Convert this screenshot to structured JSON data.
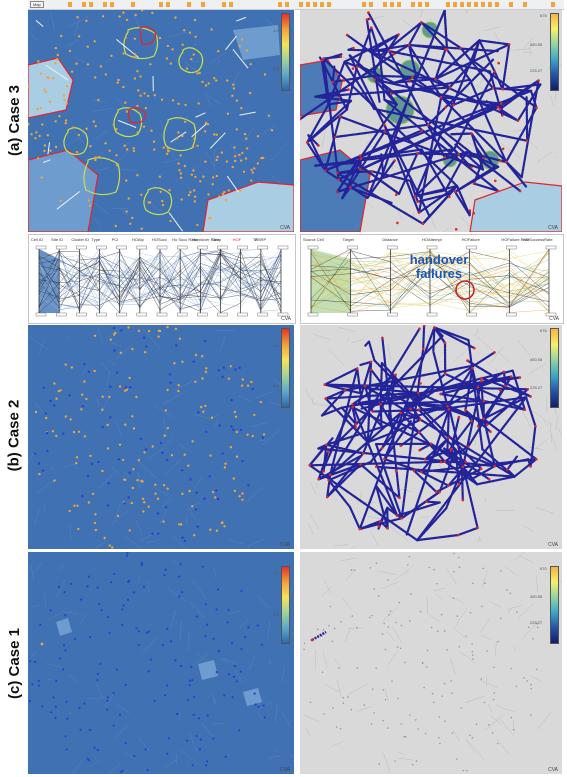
{
  "case_labels": {
    "case3": "(a) Case 3",
    "case2": "(b) Case 2",
    "case1": "(c) Case 1"
  },
  "topbar": {
    "menu_label": "Map"
  },
  "left_scale_labels": [
    "1.0",
    "0.5"
  ],
  "right_scale_labels": [
    "676",
    "450.55",
    "225.27"
  ],
  "right_scale_labels_case1": [
    "670",
    "450.55",
    "225.27"
  ],
  "corner_label": "CVA",
  "pcp_left": {
    "columns": [
      "Cell ID",
      "Site ID",
      "Cluster ID",
      "Type",
      "PCI",
      "HOAtp",
      "HOSucc",
      "Ho Succ Ratio",
      "Handover Rate",
      "Drop",
      "HOF",
      "TA",
      "RSRP"
    ]
  },
  "pcp_right": {
    "columns": [
      "Source Cell",
      "Target",
      "Distance",
      "HOAttempt",
      "HOFailure",
      "HOFailure Rate",
      "HOSuccessRate"
    ]
  },
  "annotation": {
    "line1": "handover",
    "line2": "failures"
  },
  "colors": {
    "map_blue": "#3f71b3",
    "map_gray": "#d9d9d9",
    "region_light": "#a9cde3",
    "boundary_red": "#e0262a",
    "outline_yellow": "#c8e04a",
    "dot_orange": "#f2a33a",
    "dot_blue": "#2440d8",
    "edge_navy": "#23239a",
    "annotation_blue": "#1e56b3"
  }
}
